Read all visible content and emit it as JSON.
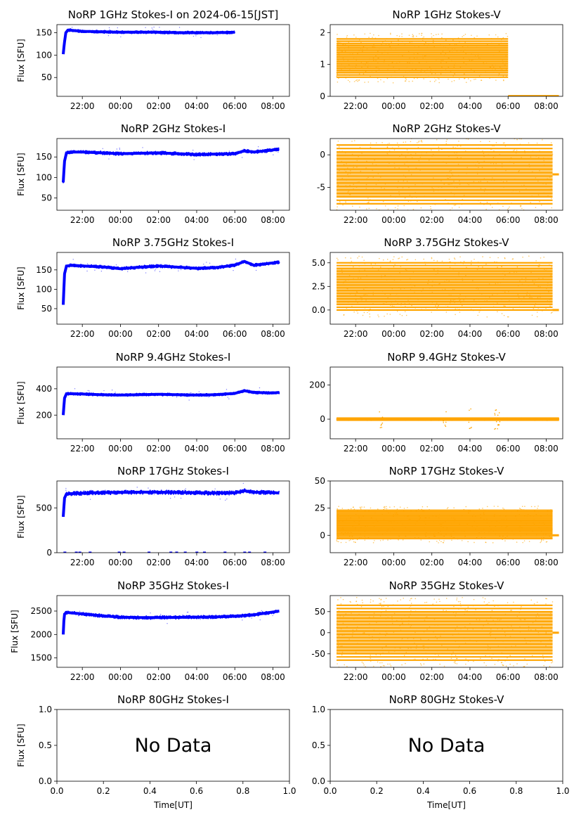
{
  "figure": {
    "colors": {
      "stokes_i": "#0000ff",
      "stokes_v": "#ffa500",
      "axes": "#000000"
    }
  },
  "chart_data": [
    {
      "id": "1GHz-I",
      "type": "scatter",
      "title": "NoRP 1GHz Stokes-I on 2024-06-15[JST]",
      "ylabel": "Flux [SFU]",
      "xlabel": "",
      "x_ticks": [
        "22:00",
        "00:00",
        "02:00",
        "04:00",
        "06:00",
        "08:00"
      ],
      "y_ticks": [
        "50",
        "100",
        "150"
      ],
      "y_tick_values": [
        50,
        100,
        150
      ],
      "ylim": [
        8,
        168
      ],
      "series": [
        {
          "x": [
            "21:00",
            "21:04",
            "21:08",
            "21:15",
            "21:30",
            "22:00",
            "23:00",
            "00:00",
            "01:00",
            "02:00",
            "03:00",
            "04:00",
            "05:00",
            "06:00"
          ],
          "values": [
            102,
            130,
            150,
            156,
            155,
            153,
            152,
            151,
            151,
            151,
            150,
            150,
            150,
            151
          ]
        }
      ],
      "scatter_band": 3
    },
    {
      "id": "1GHz-V",
      "type": "scatter",
      "title": "NoRP 1GHz Stokes-V",
      "ylabel": "",
      "xlabel": "",
      "x_ticks": [
        "22:00",
        "00:00",
        "02:00",
        "04:00",
        "06:00",
        "08:00"
      ],
      "y_ticks": [
        "0",
        "1",
        "2"
      ],
      "y_tick_values": [
        0,
        1,
        2
      ],
      "ylim": [
        0,
        2.25
      ],
      "series": [
        {
          "x": [
            "21:00",
            "22:00",
            "23:00",
            "00:00",
            "01:00",
            "02:00",
            "03:00",
            "04:00",
            "05:00",
            "06:00",
            "06:01",
            "07:00",
            "08:00",
            "08:40"
          ],
          "values": [
            1.2,
            1.2,
            1.15,
            1.1,
            1.1,
            1.05,
            1.05,
            1.1,
            1.1,
            1.1,
            0,
            0,
            0,
            0
          ]
        }
      ],
      "scatter_band": 0.6
    },
    {
      "id": "2GHz-I",
      "type": "scatter",
      "title": "NoRP 2GHz Stokes-I",
      "ylabel": "Flux [SFU]",
      "xlabel": "",
      "x_ticks": [
        "22:00",
        "00:00",
        "02:00",
        "04:00",
        "06:00",
        "08:00"
      ],
      "y_ticks": [
        "50",
        "100",
        "150"
      ],
      "y_tick_values": [
        50,
        100,
        150
      ],
      "ylim": [
        20,
        195
      ],
      "series": [
        {
          "x": [
            "21:00",
            "21:04",
            "21:10",
            "21:30",
            "22:00",
            "23:00",
            "00:00",
            "01:00",
            "02:00",
            "03:00",
            "04:00",
            "05:00",
            "06:00",
            "06:30",
            "07:00",
            "08:00",
            "08:20"
          ],
          "values": [
            88,
            140,
            160,
            162,
            162,
            160,
            158,
            159,
            160,
            158,
            156,
            157,
            158,
            165,
            162,
            167,
            170
          ]
        }
      ],
      "scatter_band": 4
    },
    {
      "id": "2GHz-V",
      "type": "scatter",
      "title": "NoRP 2GHz Stokes-V",
      "ylabel": "",
      "xlabel": "",
      "x_ticks": [
        "22:00",
        "00:00",
        "02:00",
        "04:00",
        "06:00",
        "08:00"
      ],
      "y_ticks": [
        "-5",
        "0"
      ],
      "y_tick_values": [
        -5,
        0
      ],
      "ylim": [
        -8.5,
        2.5
      ],
      "series": [
        {
          "x": [
            "21:00",
            "08:20"
          ],
          "values": [
            -3,
            -3
          ]
        }
      ],
      "scatter_band": 4.5
    },
    {
      "id": "3.75GHz-I",
      "type": "scatter",
      "title": "NoRP 3.75GHz Stokes-I",
      "ylabel": "Flux [SFU]",
      "xlabel": "",
      "x_ticks": [
        "22:00",
        "00:00",
        "02:00",
        "04:00",
        "06:00",
        "08:00"
      ],
      "y_ticks": [
        "50",
        "100",
        "150"
      ],
      "y_tick_values": [
        50,
        100,
        150
      ],
      "ylim": [
        10,
        195
      ],
      "series": [
        {
          "x": [
            "21:00",
            "21:04",
            "21:10",
            "21:30",
            "22:00",
            "23:00",
            "00:00",
            "01:00",
            "02:00",
            "03:00",
            "04:00",
            "05:00",
            "06:00",
            "06:30",
            "07:00",
            "08:00",
            "08:20"
          ],
          "values": [
            60,
            140,
            160,
            162,
            160,
            158,
            153,
            157,
            160,
            157,
            154,
            156,
            162,
            172,
            162,
            168,
            170
          ]
        }
      ],
      "scatter_band": 4
    },
    {
      "id": "3.75GHz-V",
      "type": "scatter",
      "title": "NoRP 3.75GHz Stokes-V",
      "ylabel": "",
      "xlabel": "",
      "x_ticks": [
        "22:00",
        "00:00",
        "02:00",
        "04:00",
        "06:00",
        "08:00"
      ],
      "y_ticks": [
        "0.0",
        "2.5",
        "5.0"
      ],
      "y_tick_values": [
        0,
        2.5,
        5
      ],
      "ylim": [
        -1.5,
        6.1
      ],
      "series": [
        {
          "x": [
            "21:00",
            "08:20"
          ],
          "values": [
            2.5,
            2.5
          ]
        }
      ],
      "scatter_band": 2.5
    },
    {
      "id": "9.4GHz-I",
      "type": "scatter",
      "title": "NoRP 9.4GHz Stokes-I",
      "ylabel": "Flux [SFU]",
      "xlabel": "",
      "x_ticks": [
        "22:00",
        "00:00",
        "02:00",
        "04:00",
        "06:00",
        "08:00"
      ],
      "y_ticks": [
        "200",
        "400"
      ],
      "y_tick_values": [
        200,
        400
      ],
      "ylim": [
        20,
        565
      ],
      "series": [
        {
          "x": [
            "21:00",
            "21:04",
            "21:10",
            "21:30",
            "22:00",
            "23:00",
            "00:00",
            "01:00",
            "02:00",
            "03:00",
            "04:00",
            "05:00",
            "06:00",
            "06:30",
            "07:00",
            "08:00",
            "08:20"
          ],
          "values": [
            200,
            330,
            362,
            362,
            360,
            355,
            352,
            355,
            358,
            355,
            352,
            355,
            365,
            385,
            372,
            368,
            372
          ]
        }
      ],
      "scatter_band": 10
    },
    {
      "id": "9.4GHz-V",
      "type": "scatter",
      "title": "NoRP 9.4GHz Stokes-V",
      "ylabel": "",
      "xlabel": "",
      "x_ticks": [
        "22:00",
        "00:00",
        "02:00",
        "04:00",
        "06:00",
        "08:00"
      ],
      "y_ticks": [
        "0",
        "200"
      ],
      "y_tick_values": [
        0,
        200
      ],
      "ylim": [
        -115,
        305
      ],
      "series": [
        {
          "x": [
            "21:00",
            "08:40"
          ],
          "values": [
            0,
            0
          ]
        }
      ],
      "scatter_band": 6
    },
    {
      "id": "17GHz-I",
      "type": "scatter",
      "title": "NoRP 17GHz Stokes-I",
      "ylabel": "Flux [SFU]",
      "xlabel": "",
      "x_ticks": [
        "22:00",
        "00:00",
        "02:00",
        "04:00",
        "06:00",
        "08:00"
      ],
      "y_ticks": [
        "0",
        "500"
      ],
      "y_tick_values": [
        0,
        500
      ],
      "ylim": [
        0,
        800
      ],
      "series": [
        {
          "x": [
            "21:00",
            "21:04",
            "21:10",
            "21:30",
            "22:00",
            "23:00",
            "00:00",
            "01:00",
            "02:00",
            "03:00",
            "04:00",
            "05:00",
            "06:00",
            "06:30",
            "07:00",
            "08:00",
            "08:20"
          ],
          "values": [
            400,
            610,
            655,
            660,
            665,
            670,
            672,
            675,
            675,
            672,
            668,
            665,
            668,
            690,
            675,
            670,
            665
          ]
        }
      ],
      "scatter_band": 22
    },
    {
      "id": "17GHz-V",
      "type": "scatter",
      "title": "NoRP 17GHz Stokes-V",
      "ylabel": "",
      "xlabel": "",
      "x_ticks": [
        "22:00",
        "00:00",
        "02:00",
        "04:00",
        "06:00",
        "08:00"
      ],
      "y_ticks": [
        "0",
        "25",
        "50"
      ],
      "y_tick_values": [
        0,
        25,
        50
      ],
      "ylim": [
        -16,
        50
      ],
      "series": [
        {
          "x": [
            "21:00",
            "08:20"
          ],
          "values": [
            10,
            10
          ]
        }
      ],
      "scatter_band": 13
    },
    {
      "id": "35GHz-I",
      "type": "scatter",
      "title": "NoRP 35GHz Stokes-I",
      "ylabel": "Flux [SFU]",
      "xlabel": "",
      "x_ticks": [
        "22:00",
        "00:00",
        "02:00",
        "04:00",
        "06:00",
        "08:00"
      ],
      "y_ticks": [
        "1500",
        "2000",
        "2500"
      ],
      "y_tick_values": [
        1500,
        2000,
        2500
      ],
      "ylim": [
        1300,
        2830
      ],
      "series": [
        {
          "x": [
            "21:00",
            "21:03",
            "21:10",
            "22:00",
            "23:00",
            "00:00",
            "01:00",
            "02:00",
            "03:00",
            "04:00",
            "05:00",
            "06:00",
            "07:00",
            "08:00",
            "08:20"
          ],
          "values": [
            2000,
            2430,
            2470,
            2440,
            2400,
            2370,
            2360,
            2360,
            2365,
            2370,
            2375,
            2390,
            2420,
            2480,
            2500
          ]
        }
      ],
      "scatter_band": 35
    },
    {
      "id": "35GHz-V",
      "type": "scatter",
      "title": "NoRP 35GHz Stokes-V",
      "ylabel": "",
      "xlabel": "",
      "x_ticks": [
        "22:00",
        "00:00",
        "02:00",
        "04:00",
        "06:00",
        "08:00"
      ],
      "y_ticks": [
        "-50",
        "0",
        "50"
      ],
      "y_tick_values": [
        -50,
        0,
        50
      ],
      "ylim": [
        -82,
        88
      ],
      "series": [
        {
          "x": [
            "21:00",
            "08:20"
          ],
          "values": [
            0,
            0
          ]
        }
      ],
      "scatter_band": 65
    },
    {
      "id": "80GHz-I",
      "type": "scatter",
      "title": "NoRP 80GHz Stokes-I",
      "ylabel": "Flux [SFU]",
      "xlabel": "Time[UT]",
      "x_ticks": [
        "0.0",
        "0.2",
        "0.4",
        "0.6",
        "0.8",
        "1.0"
      ],
      "y_ticks": [
        "0.0",
        "0.5",
        "1.0"
      ],
      "xlim": [
        0,
        1
      ],
      "ylim": [
        0,
        1
      ],
      "no_data_text": "No Data",
      "series": []
    },
    {
      "id": "80GHz-V",
      "type": "scatter",
      "title": "NoRP 80GHz Stokes-V",
      "ylabel": "",
      "xlabel": "Time[UT]",
      "x_ticks": [
        "0.0",
        "0.2",
        "0.4",
        "0.6",
        "0.8",
        "1.0"
      ],
      "y_ticks": [
        "0.0",
        "0.5",
        "1.0"
      ],
      "xlim": [
        0,
        1
      ],
      "ylim": [
        0,
        1
      ],
      "no_data_text": "No Data",
      "series": []
    }
  ]
}
